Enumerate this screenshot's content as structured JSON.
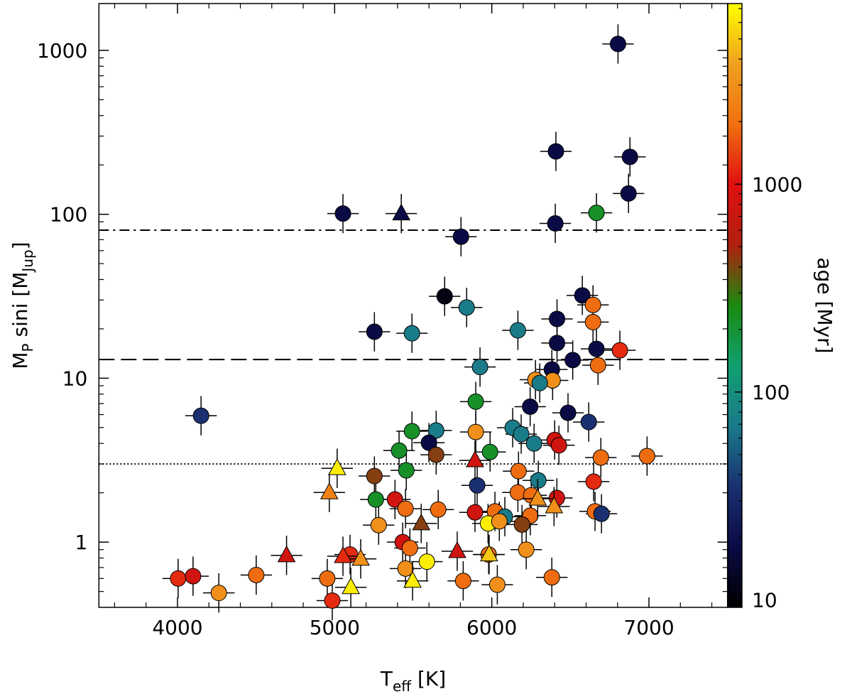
{
  "chart_data": {
    "type": "scatter",
    "xlabel": {
      "main": "T",
      "sub": "eff",
      "rest": " [K]"
    },
    "ylabel": {
      "main": "M",
      "sub": "P",
      "rest": " sini [M",
      "sub2": "Jup",
      "end": "]"
    },
    "colorbar_label": "age [Myr]",
    "log_y": true,
    "xlim": [
      3500,
      7500
    ],
    "xticks": [
      4000,
      5000,
      6000,
      7000
    ],
    "xminorticks": [
      3600,
      3800,
      4200,
      4400,
      4600,
      4800,
      5200,
      5400,
      5600,
      5800,
      6200,
      6400,
      6600,
      6800,
      7200,
      7400
    ],
    "ylim": [
      0.4,
      1930
    ],
    "yticks": [
      1,
      10,
      100,
      1000
    ],
    "yminorticks": [
      0.5,
      0.6,
      0.7,
      0.8,
      0.9,
      2,
      3,
      4,
      5,
      6,
      7,
      8,
      9,
      20,
      30,
      40,
      50,
      60,
      70,
      80,
      90,
      200,
      300,
      400,
      500,
      600,
      700,
      800,
      900
    ],
    "clim": [
      9.2,
      7400
    ],
    "cticks": [
      10,
      100,
      1000
    ],
    "cminorticks": [
      20,
      30,
      40,
      50,
      60,
      70,
      80,
      90,
      200,
      300,
      400,
      500,
      600,
      700,
      800,
      900,
      2000,
      3000,
      4000,
      5000,
      6000,
      7000
    ],
    "colormap": [
      "#000000",
      "#0a0a45",
      "#1a3070",
      "#1a7a8a",
      "#10a070",
      "#1a8a10",
      "#b02010",
      "#e01010",
      "#f07010",
      "#f0a020",
      "#ffff00"
    ],
    "hlines": [
      {
        "value": 80,
        "style": "dashdot"
      },
      {
        "value": 13,
        "style": "dashed"
      },
      {
        "value": 3,
        "style": "dotted"
      }
    ],
    "series": [
      {
        "marker": "circle",
        "xerr": 100,
        "yerr_dex": 0.12,
        "x": [
          6803,
          6408,
          6879,
          6870,
          5053,
          6666,
          6404,
          5804,
          5700,
          5840,
          6576,
          6644,
          6644,
          5253,
          5492,
          6166,
          6415,
          6415,
          6666,
          6815,
          6515,
          6676,
          5925,
          6382,
          6278,
          6387,
          6305,
          4150,
          5898,
          6244,
          6485,
          5492,
          5646,
          5898,
          6133,
          6187,
          6269,
          6617,
          6400,
          6427,
          5600,
          5410,
          5646,
          5989,
          6694,
          6988,
          5253,
          5456,
          6170,
          6296,
          5907,
          6648,
          5262,
          5384,
          6166,
          6251,
          6414,
          5451,
          5659,
          5893,
          6020,
          6083,
          6245,
          6192,
          6657,
          6698,
          5280,
          5976,
          6048,
          5433,
          5479,
          5980,
          6219,
          4004,
          4099,
          4501,
          4953,
          5098,
          4263,
          4985,
          5451,
          5587,
          5818,
          6035,
          6382
        ],
        "values": [
          1094,
          242,
          224,
          134,
          101,
          102,
          88,
          73,
          31.6,
          27,
          32,
          28,
          22,
          19.2,
          18.8,
          19.6,
          23,
          16.4,
          15.1,
          14.8,
          12.9,
          12.0,
          11.7,
          11.3,
          9.8,
          9.7,
          9.35,
          5.9,
          7.2,
          6.7,
          6.15,
          4.75,
          4.8,
          4.7,
          4.99,
          4.56,
          4.0,
          5.4,
          4.2,
          3.9,
          4.04,
          3.62,
          3.41,
          3.55,
          3.28,
          3.35,
          2.53,
          2.74,
          2.71,
          2.38,
          2.22,
          2.34,
          1.82,
          1.82,
          2.01,
          1.93,
          1.86,
          1.6,
          1.58,
          1.52,
          1.54,
          1.43,
          1.45,
          1.28,
          1.54,
          1.49,
          1.27,
          1.3,
          1.34,
          1.0,
          0.92,
          0.84,
          0.9,
          0.6,
          0.62,
          0.63,
          0.6,
          0.84,
          0.49,
          0.44,
          0.69,
          0.76,
          0.58,
          0.55,
          0.61
        ],
        "ages": [
          18,
          18,
          18,
          18,
          18,
          220,
          18,
          18,
          11,
          70,
          18,
          1900,
          1900,
          18,
          70,
          70,
          18,
          18,
          18,
          1200,
          18,
          1900,
          70,
          18,
          3000,
          3000,
          70,
          35,
          220,
          18,
          18,
          220,
          70,
          3000,
          70,
          70,
          70,
          35,
          800,
          800,
          18,
          220,
          420,
          220,
          1900,
          1900,
          420,
          220,
          1900,
          70,
          35,
          1200,
          220,
          800,
          1900,
          1900,
          800,
          1900,
          1900,
          800,
          1900,
          70,
          1900,
          420,
          1900,
          35,
          3000,
          6500,
          3000,
          800,
          1900,
          1900,
          3000,
          1200,
          800,
          1900,
          1900,
          1200,
          3000,
          1200,
          3000,
          6500,
          1900,
          3000,
          1900
        ]
      },
      {
        "marker": "triangle",
        "xerr": 100,
        "yerr_dex": 0.12,
        "x": [
          5424,
          5016,
          4966,
          5893,
          5551,
          6292,
          6396,
          4694,
          5053,
          5166,
          5780,
          5983,
          5496,
          5103
        ],
        "values": [
          101,
          2.82,
          2.01,
          3.15,
          1.3,
          1.84,
          1.65,
          0.83,
          0.82,
          0.79,
          0.88,
          0.84,
          0.58,
          0.53
        ],
        "ages": [
          18,
          6500,
          2500,
          800,
          420,
          3000,
          3000,
          800,
          1200,
          3000,
          800,
          5000,
          6500,
          6500
        ]
      }
    ]
  }
}
